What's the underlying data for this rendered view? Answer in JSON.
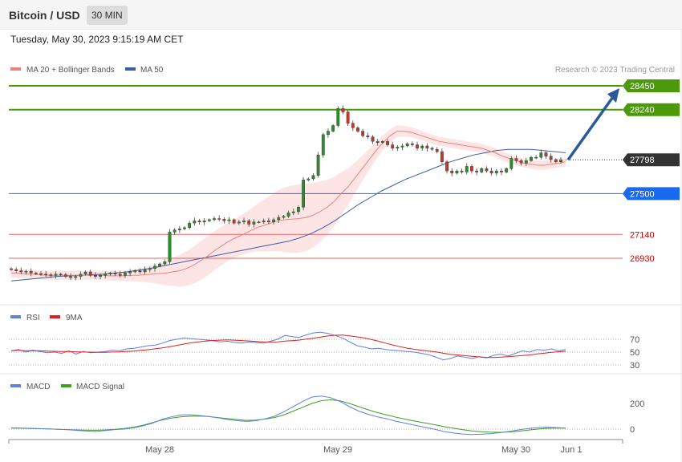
{
  "header": {
    "title": "Bitcoin / USD",
    "timeframe": "30 MIN",
    "datetime": "Tuesday, May 30, 2023 9:15:19 AM CET"
  },
  "colors": {
    "ma20": "#f08080",
    "ma50": "#3a5fa0",
    "band_fill": "#fde0e0",
    "green_level": "#4a9a0a",
    "blue_level": "#1a6af0",
    "red_level": "#f06060",
    "candle_up": "#2e8b2e",
    "candle_down": "#c0392b",
    "rsi": "#6080e0",
    "rsi_ma": "#e02020",
    "macd": "#6080e0",
    "macd_signal": "#40a020",
    "arrow": "#2a5a9a",
    "price_tag": "#333333"
  },
  "chart_data": {
    "type": "candlestick",
    "legend": [
      {
        "label": "MA 20 + Bollinger Bands",
        "color": "#f08080"
      },
      {
        "label": "MA 50",
        "color": "#3a5fa0"
      }
    ],
    "credit": "Research © 2023 Trading Central",
    "x_labels": [
      "May 28",
      "May 29",
      "May 30",
      "Jun 1"
    ],
    "ylim": [
      26400,
      28800
    ],
    "current_price": {
      "value": 27798,
      "label": "27798"
    },
    "levels": [
      {
        "value": 28450,
        "label": "28450",
        "kind": "resistance"
      },
      {
        "value": 28240,
        "label": "28240",
        "kind": "resistance"
      },
      {
        "value": 27500,
        "label": "27500",
        "kind": "pivot"
      },
      {
        "value": 27140,
        "label": "27140",
        "kind": "support"
      },
      {
        "value": 26930,
        "label": "26930",
        "kind": "support"
      }
    ],
    "target_arrow": {
      "from": 27798,
      "to": 28400
    },
    "candles_close": [
      26830,
      26820,
      26810,
      26815,
      26800,
      26795,
      26790,
      26785,
      26780,
      26790,
      26785,
      26770,
      26760,
      26770,
      26790,
      26810,
      26780,
      26770,
      26780,
      26790,
      26800,
      26790,
      26780,
      26800,
      26810,
      26820,
      26810,
      26830,
      26840,
      26860,
      26880,
      26900,
      27160,
      27180,
      27190,
      27200,
      27240,
      27260,
      27250,
      27260,
      27270,
      27280,
      27275,
      27260,
      27270,
      27240,
      27250,
      27260,
      27230,
      27250,
      27250,
      27260,
      27250,
      27270,
      27290,
      27300,
      27330,
      27340,
      27380,
      27620,
      27630,
      27660,
      27840,
      28020,
      28050,
      28100,
      28250,
      28220,
      28120,
      28080,
      28050,
      28010,
      28000,
      27960,
      27950,
      27960,
      27930,
      27900,
      27910,
      27920,
      27940,
      27930,
      27900,
      27920,
      27900,
      27890,
      27870,
      27780,
      27700,
      27680,
      27700,
      27690,
      27740,
      27700,
      27690,
      27720,
      27700,
      27680,
      27700,
      27690,
      27720,
      27810,
      27790,
      27770,
      27790,
      27820,
      27820,
      27860,
      27830,
      27800,
      27780,
      27798
    ],
    "ma20": [
      26800,
      26800,
      26790,
      26790,
      26785,
      26780,
      26780,
      26780,
      26780,
      26780,
      26780,
      26780,
      26780,
      26780,
      26775,
      26775,
      26775,
      26780,
      26780,
      26785,
      26790,
      26795,
      26800,
      26810,
      26820,
      26840,
      26870,
      26910,
      26950,
      27000,
      27040,
      27080,
      27110,
      27140,
      27170,
      27200,
      27220,
      27240,
      27260,
      27270,
      27275,
      27280,
      27290,
      27310,
      27340,
      27380,
      27430,
      27500,
      27560,
      27640,
      27720,
      27800,
      27880,
      27950,
      28010,
      28050,
      28050,
      28040,
      28020,
      28000,
      27980,
      27960,
      27950,
      27940,
      27930,
      27920,
      27910,
      27900,
      27880,
      27860,
      27830,
      27810,
      27790,
      27770,
      27760,
      27750,
      27750,
      27760,
      27770,
      27780
    ],
    "ma50": [
      26730,
      26740,
      26750,
      26760,
      26770,
      26775,
      26780,
      26785,
      26790,
      26800,
      26810,
      26825,
      26840,
      26860,
      26880,
      26900,
      26920,
      26940,
      26960,
      26980,
      27000,
      27020,
      27040,
      27060,
      27080,
      27110,
      27150,
      27200,
      27260,
      27330,
      27400,
      27460,
      27520,
      27570,
      27620,
      27660,
      27700,
      27740,
      27780,
      27810,
      27840,
      27860,
      27880,
      27890,
      27890,
      27890,
      27880,
      27870,
      27860
    ],
    "rsi": {
      "legend": [
        {
          "label": "RSI",
          "color": "#6080e0"
        },
        {
          "label": "9MA",
          "color": "#e02020"
        }
      ],
      "levels": [
        {
          "value": 70,
          "label": "70"
        },
        {
          "value": 50,
          "label": "50"
        },
        {
          "value": 30,
          "label": "30"
        }
      ],
      "ylim": [
        20,
        90
      ],
      "values": [
        52,
        54,
        50,
        53,
        51,
        49,
        50,
        48,
        52,
        47,
        51,
        49,
        50,
        51,
        53,
        52,
        55,
        56,
        58,
        60,
        61,
        64,
        68,
        70,
        72,
        71,
        70,
        69,
        68,
        66,
        67,
        65,
        64,
        66,
        65,
        64,
        67,
        70,
        76,
        74,
        73,
        77,
        80,
        81,
        79,
        76,
        72,
        66,
        60,
        58,
        55,
        56,
        54,
        53,
        52,
        51,
        50,
        48,
        46,
        42,
        38,
        40,
        44,
        42,
        40,
        43,
        41,
        45,
        47,
        44,
        48,
        52,
        50,
        54,
        53,
        55,
        52,
        54
      ]
    },
    "macd": {
      "legend": [
        {
          "label": "MACD",
          "color": "#6080e0"
        },
        {
          "label": "MACD Signal",
          "color": "#40a020"
        }
      ],
      "levels": [
        {
          "value": 200,
          "label": "200"
        },
        {
          "value": 0,
          "label": "0"
        }
      ],
      "ylim": [
        -40,
        300
      ],
      "macd": [
        10,
        8,
        6,
        4,
        2,
        -1,
        -5,
        -10,
        -15,
        -18,
        -12,
        -4,
        0,
        10,
        25,
        45,
        75,
        95,
        110,
        112,
        106,
        98,
        88,
        75,
        66,
        60,
        65,
        80,
        100,
        135,
        175,
        215,
        250,
        258,
        245,
        215,
        175,
        140,
        115,
        95,
        80,
        60,
        45,
        30,
        15,
        0,
        -18,
        -30,
        -38,
        -42,
        -40,
        -35,
        -28,
        -18,
        -6,
        5,
        12,
        15,
        12,
        8
      ],
      "signal": [
        8,
        7,
        5,
        3,
        1,
        -2,
        -4,
        -6,
        -8,
        -9,
        -6,
        -2,
        5,
        15,
        30,
        50,
        70,
        85,
        95,
        100,
        102,
        98,
        90,
        82,
        75,
        68,
        70,
        78,
        90,
        110,
        140,
        170,
        200,
        222,
        228,
        220,
        200,
        175,
        150,
        128,
        110,
        92,
        76,
        62,
        48,
        35,
        20,
        8,
        -4,
        -14,
        -20,
        -24,
        -25,
        -22,
        -16,
        -8,
        0,
        6,
        8,
        8
      ]
    }
  }
}
